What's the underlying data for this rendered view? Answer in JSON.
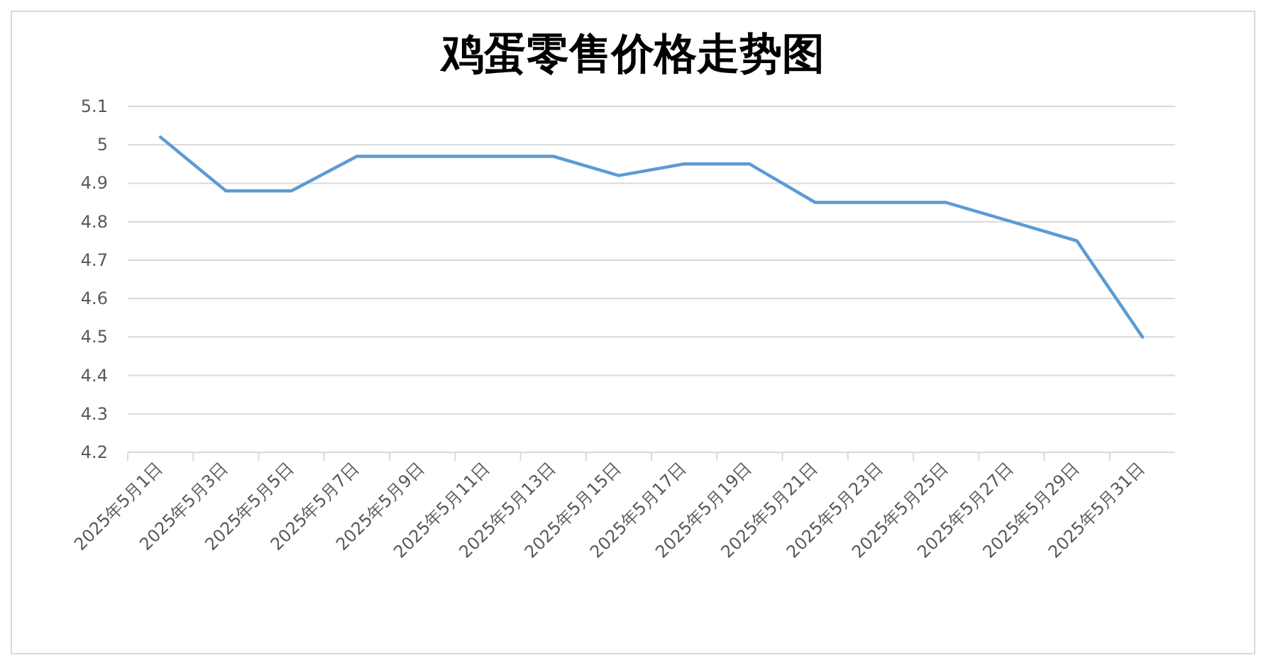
{
  "chart_data": {
    "type": "line",
    "title": "鸡蛋零售价格走势图",
    "categories": [
      "2025年5月1日",
      "2025年5月3日",
      "2025年5月5日",
      "2025年5月7日",
      "2025年5月9日",
      "2025年5月11日",
      "2025年5月13日",
      "2025年5月15日",
      "2025年5月17日",
      "2025年5月19日",
      "2025年5月21日",
      "2025年5月23日",
      "2025年5月25日",
      "2025年5月27日",
      "2025年5月29日",
      "2025年5月31日"
    ],
    "series": [
      {
        "color": "#5b9bd5",
        "values": [
          5.02,
          4.88,
          4.88,
          4.97,
          4.97,
          4.97,
          4.97,
          4.92,
          4.95,
          4.95,
          4.85,
          4.85,
          4.85,
          4.8,
          4.75,
          4.5
        ]
      }
    ],
    "ylim": [
      4.2,
      5.1
    ],
    "yticks": [
      4.2,
      4.3,
      4.4,
      4.5,
      4.6,
      4.7,
      4.8,
      4.9,
      5,
      5.1
    ],
    "grid": "y",
    "marker": "none",
    "line_style": "solid"
  }
}
